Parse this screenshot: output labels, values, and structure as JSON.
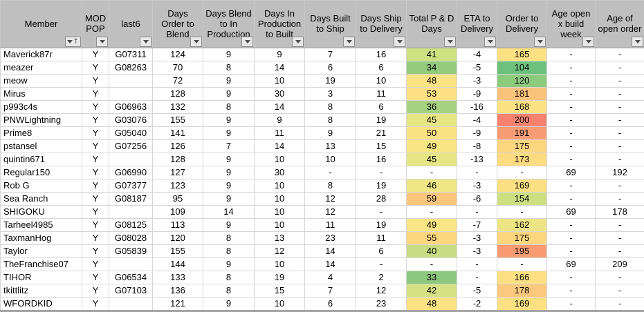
{
  "theme": {
    "header_bg": "#bfbfbf",
    "grid_line": "#d6d6d6",
    "scale_green": "#6ec17c",
    "scale_yellow": "#fbe383",
    "scale_red": "#f5826f"
  },
  "table": {
    "columns": [
      {
        "id": "member",
        "label": "Member",
        "sorted": true
      },
      {
        "id": "mod_pop",
        "label": "MOD POP",
        "sorted": false
      },
      {
        "id": "last6",
        "label": "last6",
        "sorted": false
      },
      {
        "id": "days_order_to_blend",
        "label": "Days Order to Blend",
        "sorted": false
      },
      {
        "id": "days_blend_to_in_production",
        "label": "Days Blend to In Production",
        "sorted": false
      },
      {
        "id": "days_in_production_to_built",
        "label": "Days In Production to Built",
        "sorted": false
      },
      {
        "id": "days_built_to_ship",
        "label": "Days Built to Ship",
        "sorted": false
      },
      {
        "id": "days_ship_to_delivery",
        "label": "Days Ship to Delivery",
        "sorted": false
      },
      {
        "id": "total_pd_days",
        "label": "Total P & D Days",
        "sorted": false
      },
      {
        "id": "eta_to_delivery",
        "label": "ETA to Delivery",
        "sorted": false
      },
      {
        "id": "order_to_delivery",
        "label": "Order to Delivery",
        "sorted": false
      },
      {
        "id": "age_open_x_build_week",
        "label": "Age open x build week",
        "sorted": false
      },
      {
        "id": "age_of_open_order",
        "label": "Age of open order",
        "sorted": false
      }
    ],
    "rows": [
      {
        "member": "Maverick87r",
        "mod_pop": "Y",
        "last6": "G07311",
        "days_order_to_blend": "124",
        "days_blend_to_in_production": "9",
        "days_in_production_to_built": "9",
        "days_built_to_ship": "7",
        "days_ship_to_delivery": "16",
        "total_pd_days": "41",
        "eta_to_delivery": "-4",
        "order_to_delivery": "165",
        "age_open_x_build_week": "-",
        "age_of_open_order": "-",
        "cell_colors": {
          "total_pd_days": "#cfe083",
          "order_to_delivery": "#fbe183"
        }
      },
      {
        "member": "meazer",
        "mod_pop": "Y",
        "last6": "G08263",
        "days_order_to_blend": "70",
        "days_blend_to_in_production": "8",
        "days_in_production_to_built": "14",
        "days_built_to_ship": "6",
        "days_ship_to_delivery": "6",
        "total_pd_days": "34",
        "eta_to_delivery": "-5",
        "order_to_delivery": "104",
        "age_open_x_build_week": "-",
        "age_of_open_order": "-",
        "cell_colors": {
          "total_pd_days": "#94cb7d",
          "order_to_delivery": "#6ec17c"
        }
      },
      {
        "member": "meow",
        "mod_pop": "Y",
        "last6": "",
        "days_order_to_blend": "72",
        "days_blend_to_in_production": "9",
        "days_in_production_to_built": "10",
        "days_built_to_ship": "19",
        "days_ship_to_delivery": "10",
        "total_pd_days": "48",
        "eta_to_delivery": "-3",
        "order_to_delivery": "120",
        "age_open_x_build_week": "-",
        "age_of_open_order": "-",
        "cell_colors": {
          "total_pd_days": "#fbe383",
          "order_to_delivery": "#8cca7e"
        }
      },
      {
        "member": "Mirus",
        "mod_pop": "Y",
        "last6": "",
        "days_order_to_blend": "128",
        "days_blend_to_in_production": "9",
        "days_in_production_to_built": "30",
        "days_built_to_ship": "3",
        "days_ship_to_delivery": "11",
        "total_pd_days": "53",
        "eta_to_delivery": "-9",
        "order_to_delivery": "181",
        "age_open_x_build_week": "-",
        "age_of_open_order": "-",
        "cell_colors": {
          "total_pd_days": "#fce083",
          "order_to_delivery": "#fbc27c"
        }
      },
      {
        "member": "p993c4s",
        "mod_pop": "Y",
        "last6": "G06963",
        "days_order_to_blend": "132",
        "days_blend_to_in_production": "8",
        "days_in_production_to_built": "14",
        "days_built_to_ship": "8",
        "days_ship_to_delivery": "6",
        "total_pd_days": "36",
        "eta_to_delivery": "-16",
        "order_to_delivery": "168",
        "age_open_x_build_week": "-",
        "age_of_open_order": "-",
        "cell_colors": {
          "total_pd_days": "#a6d17f",
          "order_to_delivery": "#fce283"
        }
      },
      {
        "member": "PNWLightning",
        "mod_pop": "Y",
        "last6": "G03076",
        "days_order_to_blend": "155",
        "days_blend_to_in_production": "9",
        "days_in_production_to_built": "9",
        "days_built_to_ship": "8",
        "days_ship_to_delivery": "19",
        "total_pd_days": "45",
        "eta_to_delivery": "-4",
        "order_to_delivery": "200",
        "age_open_x_build_week": "-",
        "age_of_open_order": "-",
        "cell_colors": {
          "total_pd_days": "#e6e685",
          "order_to_delivery": "#f5826f"
        }
      },
      {
        "member": "Prime8",
        "mod_pop": "Y",
        "last6": "G05040",
        "days_order_to_blend": "141",
        "days_blend_to_in_production": "9",
        "days_in_production_to_built": "11",
        "days_built_to_ship": "9",
        "days_ship_to_delivery": "21",
        "total_pd_days": "50",
        "eta_to_delivery": "-9",
        "order_to_delivery": "191",
        "age_open_x_build_week": "-",
        "age_of_open_order": "-",
        "cell_colors": {
          "total_pd_days": "#fbe383",
          "order_to_delivery": "#f79c74"
        }
      },
      {
        "member": "pstansel",
        "mod_pop": "Y",
        "last6": "G07256",
        "days_order_to_blend": "126",
        "days_blend_to_in_production": "7",
        "days_in_production_to_built": "14",
        "days_built_to_ship": "13",
        "days_ship_to_delivery": "15",
        "total_pd_days": "49",
        "eta_to_delivery": "-8",
        "order_to_delivery": "175",
        "age_open_x_build_week": "-",
        "age_of_open_order": "-",
        "cell_colors": {
          "total_pd_days": "#f9e583",
          "order_to_delivery": "#fdd67f"
        }
      },
      {
        "member": "quintin671",
        "mod_pop": "Y",
        "last6": "",
        "days_order_to_blend": "128",
        "days_blend_to_in_production": "9",
        "days_in_production_to_built": "10",
        "days_built_to_ship": "10",
        "days_ship_to_delivery": "16",
        "total_pd_days": "45",
        "eta_to_delivery": "-13",
        "order_to_delivery": "173",
        "age_open_x_build_week": "-",
        "age_of_open_order": "-",
        "cell_colors": {
          "total_pd_days": "#e6e685",
          "order_to_delivery": "#fcdb81"
        }
      },
      {
        "member": "Regular150",
        "mod_pop": "Y",
        "last6": "G06990",
        "days_order_to_blend": "127",
        "days_blend_to_in_production": "9",
        "days_in_production_to_built": "30",
        "days_built_to_ship": "-",
        "days_ship_to_delivery": "-",
        "total_pd_days": "-",
        "eta_to_delivery": "-",
        "order_to_delivery": "-",
        "age_open_x_build_week": "69",
        "age_of_open_order": "192",
        "cell_colors": {}
      },
      {
        "member": "Rob G",
        "mod_pop": "Y",
        "last6": "G07377",
        "days_order_to_blend": "123",
        "days_blend_to_in_production": "9",
        "days_in_production_to_built": "10",
        "days_built_to_ship": "8",
        "days_ship_to_delivery": "19",
        "total_pd_days": "46",
        "eta_to_delivery": "-3",
        "order_to_delivery": "169",
        "age_open_x_build_week": "-",
        "age_of_open_order": "-",
        "cell_colors": {
          "total_pd_days": "#eee784",
          "order_to_delivery": "#fbe083"
        }
      },
      {
        "member": "Sea Ranch",
        "mod_pop": "Y",
        "last6": "G08187",
        "days_order_to_blend": "95",
        "days_blend_to_in_production": "9",
        "days_in_production_to_built": "10",
        "days_built_to_ship": "12",
        "days_ship_to_delivery": "28",
        "total_pd_days": "59",
        "eta_to_delivery": "-6",
        "order_to_delivery": "154",
        "age_open_x_build_week": "-",
        "age_of_open_order": "-",
        "cell_colors": {
          "total_pd_days": "#fcc67c",
          "order_to_delivery": "#cedf81"
        }
      },
      {
        "member": "SHIGOKU",
        "mod_pop": "Y",
        "last6": "",
        "days_order_to_blend": "109",
        "days_blend_to_in_production": "14",
        "days_in_production_to_built": "10",
        "days_built_to_ship": "12",
        "days_ship_to_delivery": "-",
        "total_pd_days": "-",
        "eta_to_delivery": "-",
        "order_to_delivery": "-",
        "age_open_x_build_week": "69",
        "age_of_open_order": "178",
        "cell_colors": {}
      },
      {
        "member": "Tarheel4985",
        "mod_pop": "Y",
        "last6": "G08125",
        "days_order_to_blend": "113",
        "days_blend_to_in_production": "9",
        "days_in_production_to_built": "10",
        "days_built_to_ship": "11",
        "days_ship_to_delivery": "19",
        "total_pd_days": "49",
        "eta_to_delivery": "-7",
        "order_to_delivery": "162",
        "age_open_x_build_week": "-",
        "age_of_open_order": "-",
        "cell_colors": {
          "total_pd_days": "#f9e583",
          "order_to_delivery": "#ede584"
        }
      },
      {
        "member": "TaxmanHog",
        "mod_pop": "Y",
        "last6": "G08028",
        "days_order_to_blend": "120",
        "days_blend_to_in_production": "8",
        "days_in_production_to_built": "13",
        "days_built_to_ship": "23",
        "days_ship_to_delivery": "11",
        "total_pd_days": "55",
        "eta_to_delivery": "-3",
        "order_to_delivery": "175",
        "age_open_x_build_week": "-",
        "age_of_open_order": "-",
        "cell_colors": {
          "total_pd_days": "#fdd680",
          "order_to_delivery": "#fdd67f"
        }
      },
      {
        "member": "Taylor",
        "mod_pop": "Y",
        "last6": "G05839",
        "days_order_to_blend": "155",
        "days_blend_to_in_production": "8",
        "days_in_production_to_built": "12",
        "days_built_to_ship": "14",
        "days_ship_to_delivery": "6",
        "total_pd_days": "40",
        "eta_to_delivery": "-3",
        "order_to_delivery": "195",
        "age_open_x_build_week": "-",
        "age_of_open_order": "-",
        "cell_colors": {
          "total_pd_days": "#c8dd83",
          "order_to_delivery": "#f89b72"
        }
      },
      {
        "member": "TheFranchise07",
        "mod_pop": "Y",
        "last6": "",
        "days_order_to_blend": "144",
        "days_blend_to_in_production": "9",
        "days_in_production_to_built": "10",
        "days_built_to_ship": "14",
        "days_ship_to_delivery": "-",
        "total_pd_days": "-",
        "eta_to_delivery": "-",
        "order_to_delivery": "-",
        "age_open_x_build_week": "69",
        "age_of_open_order": "209",
        "cell_colors": {}
      },
      {
        "member": "TIHOR",
        "mod_pop": "Y",
        "last6": "G06534",
        "days_order_to_blend": "133",
        "days_blend_to_in_production": "8",
        "days_in_production_to_built": "19",
        "days_built_to_ship": "4",
        "days_ship_to_delivery": "2",
        "total_pd_days": "33",
        "eta_to_delivery": "-",
        "order_to_delivery": "166",
        "age_open_x_build_week": "-",
        "age_of_open_order": "-",
        "cell_colors": {
          "total_pd_days": "#8cc87d",
          "order_to_delivery": "#fce083"
        }
      },
      {
        "member": "tkittlitz",
        "mod_pop": "Y",
        "last6": "G07103",
        "days_order_to_blend": "136",
        "days_blend_to_in_production": "8",
        "days_in_production_to_built": "15",
        "days_built_to_ship": "7",
        "days_ship_to_delivery": "12",
        "total_pd_days": "42",
        "eta_to_delivery": "-5",
        "order_to_delivery": "178",
        "age_open_x_build_week": "-",
        "age_of_open_order": "-",
        "cell_colors": {
          "total_pd_days": "#d5e182",
          "order_to_delivery": "#fbc97d"
        }
      },
      {
        "member": "WFORDKID",
        "mod_pop": "Y",
        "last6": "",
        "days_order_to_blend": "121",
        "days_blend_to_in_production": "9",
        "days_in_production_to_built": "10",
        "days_built_to_ship": "6",
        "days_ship_to_delivery": "23",
        "total_pd_days": "48",
        "eta_to_delivery": "-2",
        "order_to_delivery": "169",
        "age_open_x_build_week": "-",
        "age_of_open_order": "-",
        "cell_colors": {
          "total_pd_days": "#fbe383",
          "order_to_delivery": "#fbe083"
        }
      }
    ]
  }
}
